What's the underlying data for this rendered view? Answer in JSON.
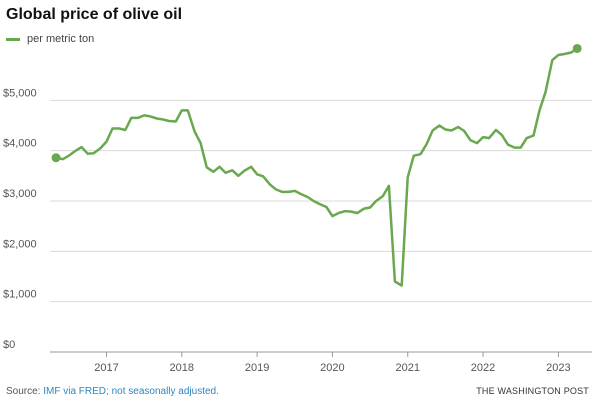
{
  "title": "Global price of olive oil",
  "legend_label": "per metric ton",
  "footer": {
    "source_prefix": "Source: ",
    "source_link": "IMF via FRED; not seasonally adjusted.",
    "credit": "THE WASHINGTON POST"
  },
  "colors": {
    "line": "#6aa84f",
    "grid": "#d9d9d9",
    "axis_text": "#555555",
    "link": "#2e86c1"
  },
  "chart_data": {
    "type": "line",
    "title": "Global price of olive oil",
    "xlabel": "",
    "ylabel": "",
    "ylim": [
      0,
      6000
    ],
    "xlim": [
      2016.25,
      2023.42
    ],
    "y_ticks": [
      0,
      1000,
      2000,
      3000,
      4000,
      5000
    ],
    "y_tick_labels": [
      "$0",
      "$1,000",
      "$2,000",
      "$3,000",
      "$4,000",
      "$5,000"
    ],
    "x_ticks": [
      2017,
      2018,
      2019,
      2020,
      2021,
      2022,
      2023
    ],
    "x_tick_labels": [
      "2017",
      "2018",
      "2019",
      "2020",
      "2021",
      "2022",
      "2023"
    ],
    "grid": true,
    "legend_position": "top-left",
    "series": [
      {
        "name": "per metric ton",
        "x": [
          2016.33,
          2016.42,
          2016.5,
          2016.58,
          2016.67,
          2016.75,
          2016.83,
          2016.92,
          2017.0,
          2017.08,
          2017.17,
          2017.25,
          2017.33,
          2017.42,
          2017.5,
          2017.58,
          2017.67,
          2017.75,
          2017.83,
          2017.92,
          2018.0,
          2018.08,
          2018.17,
          2018.25,
          2018.33,
          2018.42,
          2018.5,
          2018.58,
          2018.67,
          2018.75,
          2018.83,
          2018.92,
          2019.0,
          2019.08,
          2019.17,
          2019.25,
          2019.33,
          2019.42,
          2019.5,
          2019.58,
          2019.67,
          2019.75,
          2019.83,
          2019.92,
          2020.0,
          2020.08,
          2020.17,
          2020.25,
          2020.33,
          2020.42,
          2020.5,
          2020.58,
          2020.67,
          2020.75,
          2020.83,
          2020.92,
          2021.0,
          2021.08,
          2021.17,
          2021.25,
          2021.33,
          2021.42,
          2021.5,
          2021.58,
          2021.67,
          2021.75,
          2021.83,
          2021.92,
          2022.0,
          2022.08,
          2022.17,
          2022.25,
          2022.33,
          2022.42,
          2022.5,
          2022.58,
          2022.67,
          2022.75,
          2022.83,
          2022.92,
          2023.0,
          2023.08,
          2023.17,
          2023.25
        ],
        "values": [
          3860,
          3830,
          3900,
          3990,
          4070,
          3940,
          3950,
          4050,
          4180,
          4440,
          4440,
          4410,
          4650,
          4650,
          4700,
          4680,
          4640,
          4620,
          4590,
          4580,
          4800,
          4800,
          4380,
          4150,
          3670,
          3580,
          3680,
          3560,
          3610,
          3500,
          3600,
          3680,
          3530,
          3490,
          3330,
          3230,
          3180,
          3180,
          3200,
          3140,
          3080,
          3000,
          2940,
          2880,
          2700,
          2760,
          2800,
          2790,
          2760,
          2850,
          2870,
          3000,
          3100,
          3300,
          1400,
          1320,
          3470,
          3900,
          3930,
          4130,
          4400,
          4500,
          4420,
          4400,
          4470,
          4390,
          4210,
          4150,
          4270,
          4250,
          4410,
          4310,
          4120,
          4060,
          4060,
          4250,
          4300,
          4800,
          5170,
          5800,
          5900,
          5920,
          5950,
          6030
        ]
      }
    ]
  }
}
